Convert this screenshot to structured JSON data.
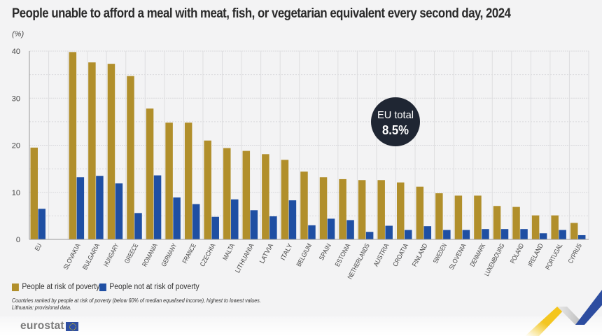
{
  "header": {
    "title": "People unable to afford a meal with meat, fish, or vegetarian equivalent every second day, 2024",
    "unit": "(%)"
  },
  "chart_data": {
    "type": "bar",
    "title": "People unable to afford a meal with meat, fish, or vegetarian equivalent every second day, 2024",
    "xlabel": "",
    "ylabel": "(%)",
    "ylim": [
      0,
      40
    ],
    "yticks": [
      0,
      10,
      20,
      30,
      40
    ],
    "grid": true,
    "legend_position": "bottom-left",
    "categories": [
      "EU",
      "",
      "SLOVAKIA",
      "BULGARIA",
      "HUNGARY",
      "GREECE",
      "ROMANIA",
      "GERMANY",
      "FRANCE",
      "CZECHIA",
      "MALTA",
      "LITHUANIA",
      "LATVIA",
      "ITALY",
      "BELGIUM",
      "SPAIN",
      "ESTONIA",
      "NETHERLANDS",
      "AUSTRIA",
      "CROATIA",
      "FINLAND",
      "SWEDEN",
      "SLOVENIA",
      "DENMARK",
      "LUXEMBOURG",
      "POLAND",
      "IRELAND",
      "PORTUGAL",
      "CYPRUS"
    ],
    "series": [
      {
        "name": "People at risk of poverty",
        "color": "#b18f2b",
        "values": [
          19.5,
          null,
          39.8,
          37.6,
          37.3,
          34.7,
          27.8,
          24.8,
          24.8,
          21.0,
          19.4,
          18.8,
          18.1,
          16.9,
          14.4,
          13.2,
          12.8,
          12.6,
          12.6,
          12.1,
          11.2,
          9.8,
          9.3,
          9.3,
          7.1,
          6.9,
          5.1,
          5.1,
          3.5
        ]
      },
      {
        "name": "People not at risk of poverty",
        "color": "#1f4fa3",
        "values": [
          6.5,
          null,
          13.2,
          13.5,
          11.9,
          5.6,
          13.6,
          8.9,
          7.5,
          4.8,
          8.5,
          6.2,
          4.9,
          8.3,
          3.0,
          4.4,
          4.1,
          1.6,
          2.9,
          2.0,
          2.8,
          2.0,
          2.0,
          2.2,
          2.2,
          2.2,
          1.3,
          2.0,
          0.9
        ]
      }
    ],
    "annotation": {
      "label": "EU total",
      "value": "8.5%"
    }
  },
  "legend": {
    "items": [
      {
        "label": "People at risk of poverty",
        "color": "#b18f2b"
      },
      {
        "label": "People not at risk of poverty",
        "color": "#1f4fa3"
      }
    ]
  },
  "notes": {
    "line1": "Countries ranked by people at risk of poverty (below 60% of median equalised income), highest to lowest values.",
    "line2": "Lithuania: provisional data."
  },
  "footer": {
    "logo_text": "eurostat"
  }
}
